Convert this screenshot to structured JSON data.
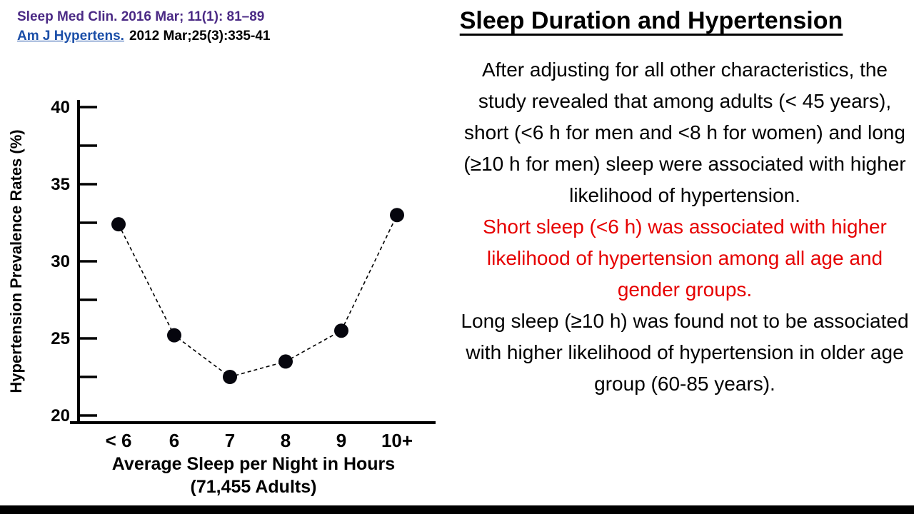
{
  "citations": {
    "line1": "Sleep Med Clin. 2016 Mar; 11(1): 81–89",
    "line2_link": "Am J Hypertens.",
    "line2_rest": "2012 Mar;25(3):335-41"
  },
  "title": "Sleep Duration and Hypertension",
  "body": {
    "para1": "After adjusting for all other characteristics, the study revealed that among adults (< 45 years), short (<6 h for men and <8 h for women) and long (≥10 h for men) sleep were associated with higher likelihood of hypertension.",
    "para2_red": "Short sleep (<6 h) was associated with higher likelihood of hypertension among all age and gender groups.",
    "para3": "Long sleep (≥10 h) was found not to be associated with higher likelihood of hypertension in older age group (60-85 years)."
  },
  "chart_data": {
    "type": "scatter",
    "categories": [
      "< 6",
      "6",
      "7",
      "8",
      "9",
      "10+"
    ],
    "values": [
      32.4,
      25.2,
      22.5,
      23.5,
      25.5,
      33.0
    ],
    "title": "",
    "ylabel": "Hypertension Prevalence Rates (%)",
    "xlabel_line1": "Average Sleep per Night in Hours",
    "xlabel_line2": "(71,455 Adults)",
    "ylim": [
      20,
      40
    ],
    "ytick_major": [
      20,
      25,
      30,
      35,
      40
    ],
    "ytick_minor_step": 2.5,
    "grid": false,
    "legend": "none",
    "line_style": "dashed",
    "marker": "filled-circle"
  },
  "colors": {
    "citation_purple": "#4b2a85",
    "link_blue": "#1b4fa8",
    "red_text": "#e60000",
    "marker_black": "#06060e",
    "axis_black": "#000000"
  }
}
